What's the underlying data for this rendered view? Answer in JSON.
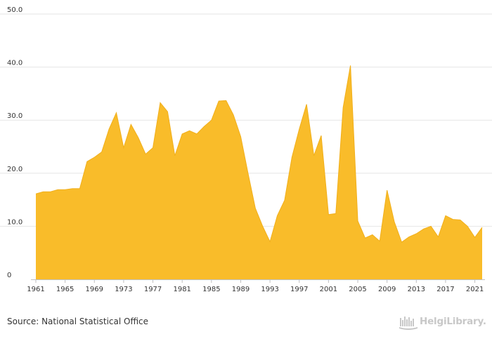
{
  "chart_data": {
    "type": "area",
    "title": "",
    "xlabel": "",
    "ylabel": "",
    "ylim": [
      0,
      50
    ],
    "yticks": [
      "0",
      "10.0",
      "20.0",
      "30.0",
      "40.0",
      "50.0"
    ],
    "xticks": [
      "1961",
      "1965",
      "1969",
      "1973",
      "1977",
      "1981",
      "1985",
      "1989",
      "1993",
      "1997",
      "2001",
      "2005",
      "2009",
      "2013",
      "2017",
      "2021"
    ],
    "grid": true,
    "fill_color": "#F9BC2A",
    "line_color": "#F1AF1B",
    "x": [
      1961,
      1962,
      1963,
      1964,
      1965,
      1966,
      1967,
      1968,
      1969,
      1970,
      1971,
      1972,
      1973,
      1974,
      1975,
      1976,
      1977,
      1978,
      1979,
      1980,
      1981,
      1982,
      1983,
      1984,
      1985,
      1986,
      1987,
      1988,
      1989,
      1990,
      1991,
      1992,
      1993,
      1994,
      1995,
      1996,
      1997,
      1998,
      1999,
      2000,
      2001,
      2002,
      2003,
      2004,
      2005,
      2006,
      2007,
      2008,
      2009,
      2010,
      2011,
      2012,
      2013,
      2014,
      2015,
      2016,
      2017,
      2018,
      2019,
      2020,
      2021,
      2022
    ],
    "values": [
      16.1,
      16.5,
      16.5,
      16.9,
      16.9,
      17.1,
      17.1,
      22.2,
      23.0,
      24.0,
      28.3,
      31.4,
      24.8,
      29.2,
      26.7,
      23.6,
      24.8,
      33.3,
      31.6,
      23.3,
      27.4,
      28.0,
      27.4,
      28.8,
      30.0,
      33.6,
      33.7,
      31.0,
      26.9,
      20.0,
      13.4,
      10.0,
      7.1,
      12.0,
      14.9,
      23.0,
      28.3,
      33.0,
      23.3,
      27.1,
      12.2,
      12.4,
      32.4,
      40.3,
      11.0,
      7.8,
      8.4,
      7.2,
      16.8,
      10.8,
      7.0,
      8.0,
      8.6,
      9.5,
      10.0,
      8.0,
      12.0,
      11.3,
      11.2,
      10.0,
      7.9,
      9.8
    ]
  },
  "footer": {
    "source": "Source: National Statistical Office",
    "logo_text": "HelgiLibrary."
  }
}
